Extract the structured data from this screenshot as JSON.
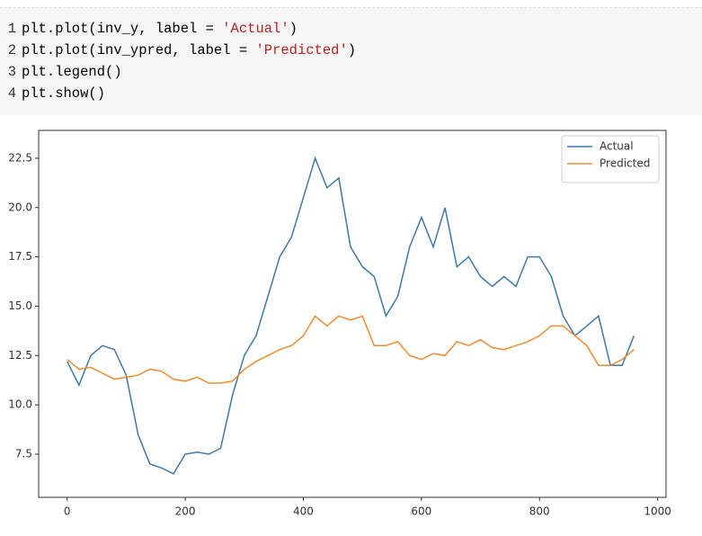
{
  "code": [
    {
      "number": "1",
      "parts": [
        "plt.plot(inv_y, label = ",
        "'Actual'",
        ")"
      ]
    },
    {
      "number": "2",
      "parts": [
        "plt.plot(inv_ypred, label = ",
        "'Predicted'",
        ")"
      ]
    },
    {
      "number": "3",
      "parts": [
        "plt.legend()"
      ]
    },
    {
      "number": "4",
      "parts": [
        "plt.show()"
      ]
    }
  ],
  "chart_data": {
    "type": "line",
    "x": [
      0,
      20,
      40,
      60,
      80,
      100,
      120,
      140,
      160,
      180,
      200,
      220,
      240,
      260,
      280,
      300,
      320,
      340,
      360,
      380,
      400,
      420,
      440,
      460,
      480,
      500,
      520,
      540,
      560,
      580,
      600,
      620,
      640,
      660,
      680,
      700,
      720,
      740,
      760,
      780,
      800,
      820,
      840,
      860,
      880,
      900,
      920,
      940,
      960
    ],
    "series": [
      {
        "name": "Actual",
        "color": "#3d79a8",
        "values": [
          12.2,
          11.0,
          12.5,
          13.0,
          12.8,
          11.5,
          8.5,
          7.0,
          6.8,
          6.5,
          7.5,
          7.6,
          7.5,
          7.8,
          10.5,
          12.5,
          13.5,
          15.5,
          17.5,
          18.5,
          20.5,
          22.5,
          21.0,
          21.5,
          18.0,
          17.0,
          16.5,
          14.5,
          15.5,
          18.0,
          19.5,
          18.0,
          20.0,
          17.0,
          17.5,
          16.5,
          16.0,
          16.5,
          16.0,
          17.5,
          17.5,
          16.5,
          14.5,
          13.5,
          14.0,
          14.5,
          12.0,
          12.0,
          13.5
        ]
      },
      {
        "name": "Predicted",
        "color": "#f08a2e",
        "values": [
          12.3,
          11.8,
          11.9,
          11.6,
          11.3,
          11.4,
          11.5,
          11.8,
          11.7,
          11.3,
          11.2,
          11.4,
          11.1,
          11.1,
          11.2,
          11.8,
          12.2,
          12.5,
          12.8,
          13.0,
          13.5,
          14.5,
          14.0,
          14.5,
          14.3,
          14.5,
          13.0,
          13.0,
          13.2,
          12.5,
          12.3,
          12.6,
          12.5,
          13.2,
          13.0,
          13.3,
          12.9,
          12.8,
          13.0,
          13.2,
          13.5,
          14.0,
          14.0,
          13.5,
          13.0,
          12.0,
          12.0,
          12.3,
          12.8
        ]
      }
    ],
    "xlim": [
      -48.3,
      1014.3
    ],
    "xticks": [
      0,
      200,
      400,
      600,
      800,
      1000
    ],
    "ylim": [
      5.31,
      23.91
    ],
    "yticks": [
      7.5,
      {
        "value": 10,
        "label": "10.0"
      },
      12.5,
      {
        "value": 15,
        "label": "15.0"
      },
      17.5,
      {
        "value": 20,
        "label": "20.0"
      },
      22.5
    ],
    "legend": "upper right",
    "grid": false
  }
}
